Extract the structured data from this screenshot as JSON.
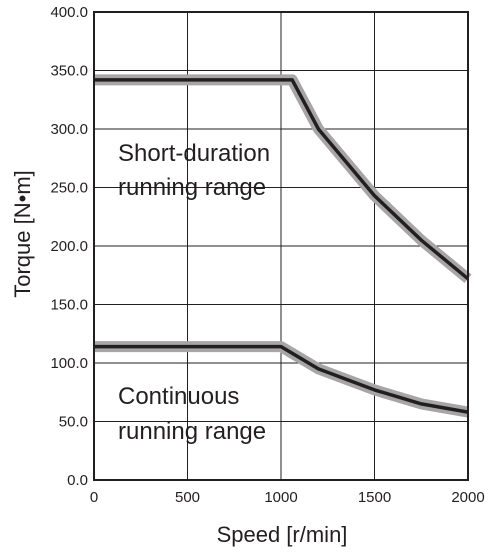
{
  "chart_data": {
    "type": "line",
    "xlabel": "Speed [r/min]",
    "ylabel": "Torque [N•m]",
    "xlim": [
      0,
      2000
    ],
    "ylim": [
      0,
      400
    ],
    "x_ticks": [
      "0",
      "500",
      "1000",
      "1500",
      "2000"
    ],
    "y_ticks": [
      "0.0",
      "50.0",
      "100.0",
      "150.0",
      "200.0",
      "250.0",
      "300.0",
      "350.0",
      "400.0"
    ],
    "grid": true,
    "annotations": {
      "short_line1": "Short-duration",
      "short_line2": "running range",
      "cont_line1": "Continuous",
      "cont_line2": "running range"
    },
    "series": [
      {
        "x": [
          0,
          1060,
          1200,
          1500,
          1750,
          2000
        ],
        "y": [
          342,
          342,
          300,
          243,
          205,
          172
        ]
      },
      {
        "x": [
          0,
          1000,
          1200,
          1500,
          1750,
          2000
        ],
        "y": [
          114,
          114,
          95,
          77,
          65,
          58
        ]
      }
    ],
    "band_color": "#a6a6a6",
    "line_color": "#231f20"
  }
}
